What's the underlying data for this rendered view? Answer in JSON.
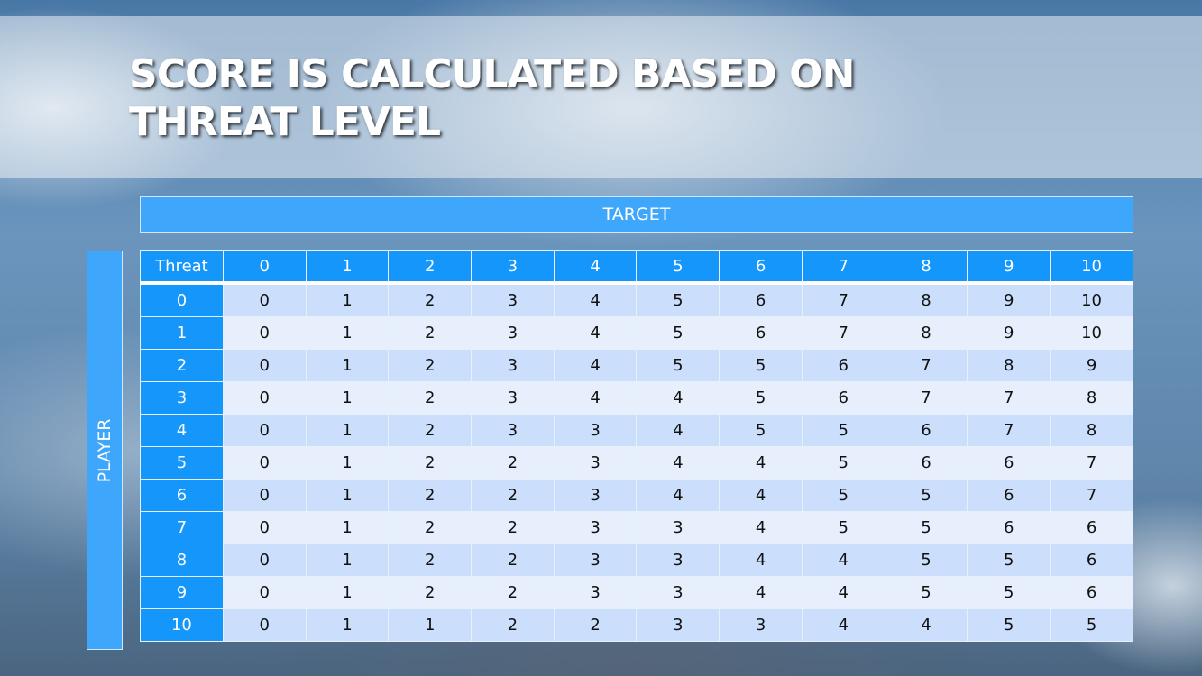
{
  "slide": {
    "title_lines": [
      "SCORE IS CALCULATED BASED ON",
      "THREAT LEVEL"
    ],
    "target_label": "TARGET",
    "player_label": "PLAYER"
  },
  "table": {
    "corner": "Threat",
    "columns": [
      "0",
      "1",
      "2",
      "3",
      "4",
      "5",
      "6",
      "7",
      "8",
      "9",
      "10"
    ],
    "rows": [
      {
        "label": "0",
        "values": [
          "0",
          "1",
          "2",
          "3",
          "4",
          "5",
          "6",
          "7",
          "8",
          "9",
          "10"
        ]
      },
      {
        "label": "1",
        "values": [
          "0",
          "1",
          "2",
          "3",
          "4",
          "5",
          "6",
          "7",
          "8",
          "9",
          "10"
        ]
      },
      {
        "label": "2",
        "values": [
          "0",
          "1",
          "2",
          "3",
          "4",
          "5",
          "5",
          "6",
          "7",
          "8",
          "9"
        ]
      },
      {
        "label": "3",
        "values": [
          "0",
          "1",
          "2",
          "3",
          "4",
          "4",
          "5",
          "6",
          "7",
          "7",
          "8"
        ]
      },
      {
        "label": "4",
        "values": [
          "0",
          "1",
          "2",
          "3",
          "3",
          "4",
          "5",
          "5",
          "6",
          "7",
          "8"
        ]
      },
      {
        "label": "5",
        "values": [
          "0",
          "1",
          "2",
          "2",
          "3",
          "4",
          "4",
          "5",
          "6",
          "6",
          "7"
        ]
      },
      {
        "label": "6",
        "values": [
          "0",
          "1",
          "2",
          "2",
          "3",
          "4",
          "4",
          "5",
          "5",
          "6",
          "7"
        ]
      },
      {
        "label": "7",
        "values": [
          "0",
          "1",
          "2",
          "2",
          "3",
          "3",
          "4",
          "5",
          "5",
          "6",
          "6"
        ]
      },
      {
        "label": "8",
        "values": [
          "0",
          "1",
          "2",
          "2",
          "3",
          "3",
          "4",
          "4",
          "5",
          "5",
          "6"
        ]
      },
      {
        "label": "9",
        "values": [
          "0",
          "1",
          "2",
          "2",
          "3",
          "3",
          "4",
          "4",
          "5",
          "5",
          "6"
        ]
      },
      {
        "label": "10",
        "values": [
          "0",
          "1",
          "1",
          "2",
          "2",
          "3",
          "3",
          "4",
          "4",
          "5",
          "5"
        ]
      }
    ]
  },
  "colors": {
    "header_blue": "#1496fb",
    "label_blue": "#3fa7fb",
    "row_odd": "#cbdefb",
    "row_even": "#e7effd"
  }
}
